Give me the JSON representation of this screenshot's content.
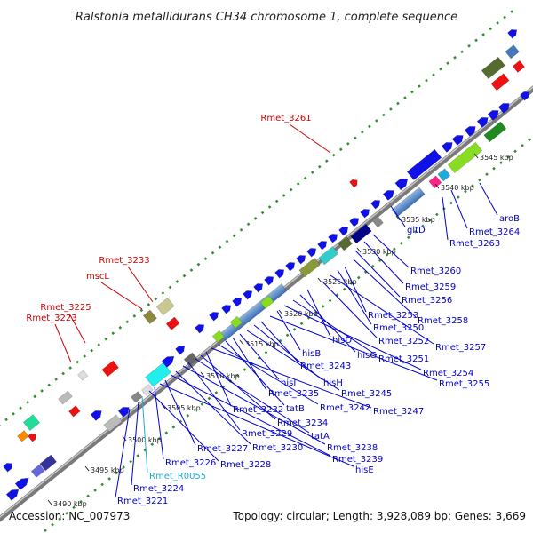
{
  "title": "Ralstonia metallidurans CH34 chromosome 1, complete sequence",
  "accession": "Accession: NC_007973",
  "topology": "Topology: circular; Length: 3,928,089 bp; Genes: 3,669",
  "colors": {
    "blue_gene": "#1010e8",
    "red_gene": "#ee1111",
    "label_blue": "#0000cc",
    "label_red": "#cc0000",
    "label_cyan": "#22aacc",
    "backbone": "#808080",
    "ring_dots": "#338833"
  },
  "ticks": [
    "3490 kbp",
    "3495 kbp",
    "3500 kbp",
    "3505 kbp",
    "3510 kbp",
    "3515 kbp",
    "3520 kbp",
    "3525 kbp",
    "3530 kbp",
    "3535 kbp",
    "3540 kbp",
    "3545 kbp"
  ],
  "labels_outer": [
    {
      "text": "Rmet_3261",
      "color": "red"
    },
    {
      "text": "Rmet_3233",
      "color": "red"
    },
    {
      "text": "mscL",
      "color": "red"
    },
    {
      "text": "Rmet_3225",
      "color": "red"
    },
    {
      "text": "Rmet_3223",
      "color": "red"
    }
  ],
  "labels_inner": [
    {
      "text": "aroB",
      "color": "blue"
    },
    {
      "text": "Rmet_3264",
      "color": "blue"
    },
    {
      "text": "Rmet_3263",
      "color": "blue"
    },
    {
      "text": "gltD",
      "color": "blue"
    },
    {
      "text": "Rmet_3260",
      "color": "blue"
    },
    {
      "text": "Rmet_3259",
      "color": "blue"
    },
    {
      "text": "Rmet_3256",
      "color": "blue"
    },
    {
      "text": "Rmet_3258",
      "color": "blue"
    },
    {
      "text": "Rmet_3253",
      "color": "blue"
    },
    {
      "text": "Rmet_3250",
      "color": "blue"
    },
    {
      "text": "Rmet_3257",
      "color": "blue"
    },
    {
      "text": "Rmet_3252",
      "color": "blue"
    },
    {
      "text": "hisD",
      "color": "blue"
    },
    {
      "text": "hisG",
      "color": "blue"
    },
    {
      "text": "Rmet_3251",
      "color": "blue"
    },
    {
      "text": "Rmet_3254",
      "color": "blue"
    },
    {
      "text": "hisB",
      "color": "blue"
    },
    {
      "text": "Rmet_3255",
      "color": "blue"
    },
    {
      "text": "Rmet_3243",
      "color": "blue"
    },
    {
      "text": "hisH",
      "color": "blue"
    },
    {
      "text": "Rmet_3245",
      "color": "blue"
    },
    {
      "text": "hisI",
      "color": "blue"
    },
    {
      "text": "Rmet_3235",
      "color": "blue"
    },
    {
      "text": "tatB",
      "color": "blue"
    },
    {
      "text": "Rmet_3242",
      "color": "blue"
    },
    {
      "text": "Rmet_3247",
      "color": "blue"
    },
    {
      "text": "Rmet_3232",
      "color": "blue"
    },
    {
      "text": "Rmet_3234",
      "color": "blue"
    },
    {
      "text": "tatA",
      "color": "blue"
    },
    {
      "text": "Rmet_3229",
      "color": "blue"
    },
    {
      "text": "Rmet_3238",
      "color": "blue"
    },
    {
      "text": "Rmet_3230",
      "color": "blue"
    },
    {
      "text": "Rmet_3239",
      "color": "blue"
    },
    {
      "text": "Rmet_3227",
      "color": "blue"
    },
    {
      "text": "hisE",
      "color": "blue"
    },
    {
      "text": "Rmet_3226",
      "color": "blue"
    },
    {
      "text": "Rmet_3228",
      "color": "blue"
    },
    {
      "text": "Rmet_R0055",
      "color": "cyan"
    },
    {
      "text": "Rmet_3224",
      "color": "blue"
    },
    {
      "text": "Rmet_3221",
      "color": "blue"
    }
  ]
}
